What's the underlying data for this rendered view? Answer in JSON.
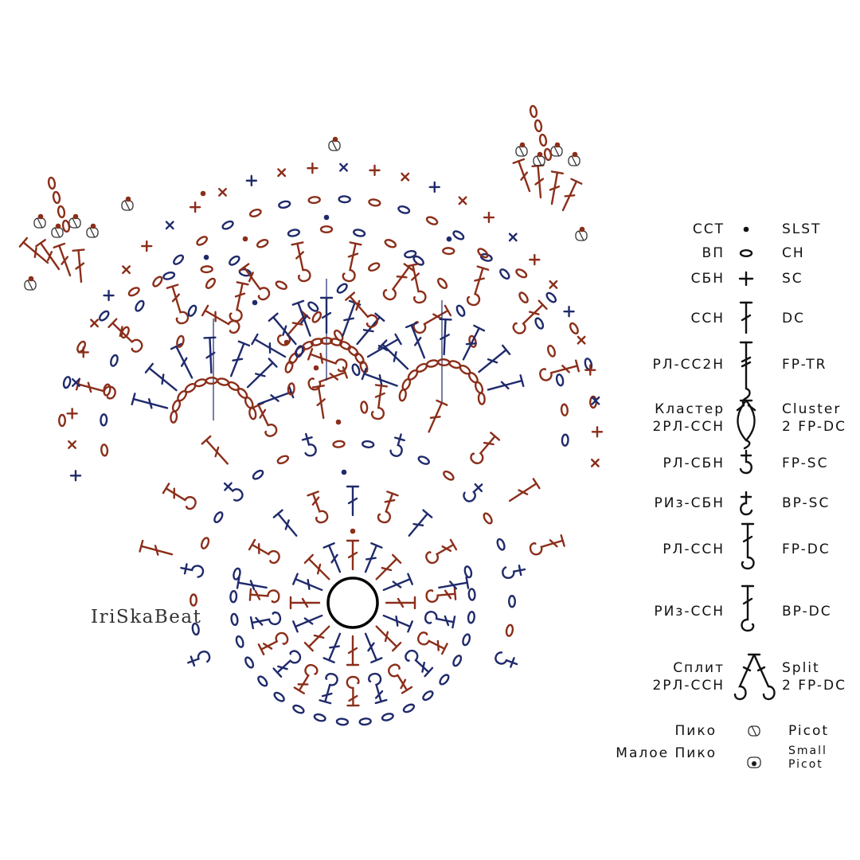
{
  "watermark": "IriSkaBeat",
  "colors": {
    "brown": "#8b2e1a",
    "navy": "#1f2a6b",
    "ink": "#111111"
  },
  "legend": [
    {
      "ru": "ССТ",
      "en": "SLST",
      "symbol": "dot"
    },
    {
      "ru": "ВП",
      "en": "CH",
      "symbol": "chain-oval"
    },
    {
      "ru": "СБН",
      "en": "SC",
      "symbol": "plus"
    },
    {
      "ru": "ССН",
      "en": "DC",
      "symbol": "dc"
    },
    {
      "ru": "РЛ-СС2Н",
      "en": "FP-TR",
      "symbol": "fp-tr"
    },
    {
      "ru": "Кластер\n2РЛ-ССН",
      "en": "Cluster\n2 FP-DC",
      "symbol": "cluster"
    },
    {
      "ru": "РЛ-СБН",
      "en": "FP-SC",
      "symbol": "fp-sc"
    },
    {
      "ru": "РИз-СБН",
      "en": "BP-SC",
      "symbol": "bp-sc"
    },
    {
      "ru": "РЛ-ССН",
      "en": "FP-DC",
      "symbol": "fp-dc"
    },
    {
      "ru": "РИз-ССН",
      "en": "BP-DC",
      "symbol": "bp-dc"
    },
    {
      "ru": "Сплит\n2РЛ-ССН",
      "en": "Split\n2 FP-DC",
      "symbol": "split"
    },
    {
      "ru": "Пико",
      "en": "Picot",
      "symbol": "picot"
    },
    {
      "ru": "Малое Пико",
      "en": "Small\nPicot",
      "symbol": "small-picot"
    }
  ]
}
